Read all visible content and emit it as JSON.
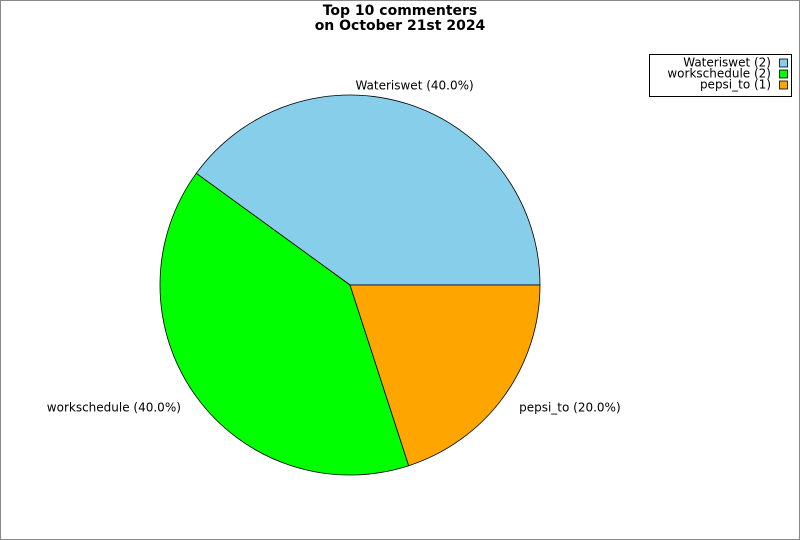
{
  "chart_data": {
    "type": "pie",
    "title": [
      "Top 10 commenters",
      "on October 21st 2024"
    ],
    "categories": [
      "Wateriswet (40.0%)",
      "workschedule (40.0%)",
      "pepsi_to (20.0%)"
    ],
    "values": [
      40,
      40,
      20
    ],
    "colors": [
      "#87ceeb",
      "#00ff00",
      "#ffa500"
    ],
    "legend_labels": [
      "Wateriswet (2)",
      "workschedule (2)",
      "pepsi_to (1)"
    ],
    "legend_position": "upper right"
  }
}
